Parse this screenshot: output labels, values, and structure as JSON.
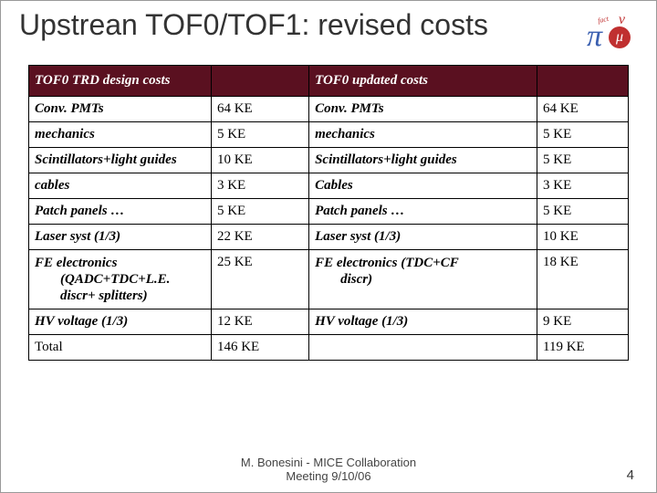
{
  "title": "Upstrean TOF0/TOF1: revised costs",
  "logo": {
    "pi": "π",
    "mu": "μ",
    "nu": "ν",
    "fact": "fact"
  },
  "header": {
    "col1": "TOF0 TRD design costs",
    "col2": "",
    "col3": "TOF0 updated costs",
    "col4": ""
  },
  "rows": [
    {
      "l1": "Conv. PMTs",
      "v1": " 64 KE",
      "l2": "Conv. PMTs",
      "v2": "64 KE"
    },
    {
      "l1": "mechanics",
      "v1": "5 KE",
      "l2": "mechanics",
      "v2": " 5 KE"
    },
    {
      "l1": "Scintillators+light guides",
      "v1": "10 KE",
      "l2": "Scintillators+light guides",
      "v2": " 5 KE"
    },
    {
      "l1": "cables",
      "v1": " 3 KE",
      "l2": "Cables",
      "v2": "3 KE"
    },
    {
      "l1": "Patch panels …",
      "v1": "5 KE",
      "l2": "Patch panels …",
      "v2": "5 KE"
    },
    {
      "l1": "Laser syst (1/3)",
      "v1": "22 KE",
      "l2": "Laser syst (1/3)",
      "v2": "10 KE"
    },
    {
      "l1a": "FE electronics",
      "l1b": "(QADC+TDC+L.E. discr+ splitters)",
      "v1": " 25 KE",
      "l2a": "FE electronics (TDC+CF",
      "l2b": "discr)",
      "v2": "18 KE"
    },
    {
      "l1": "HV voltage (1/3)",
      "v1": "12 KE",
      "l2": "HV voltage (1/3)",
      "v2": " 9 KE"
    }
  ],
  "total": {
    "l1": "Total",
    "v1": "146 KE",
    "l2": "",
    "v2": "119 KE"
  },
  "footer_line1": "M. Bonesini - MICE Collaboration",
  "footer_line2": "Meeting  9/10/06",
  "page": "4",
  "colors": {
    "header_bg": "#5a1020",
    "header_fg": "#ffffff",
    "border": "#000000",
    "title_color": "#333333"
  }
}
